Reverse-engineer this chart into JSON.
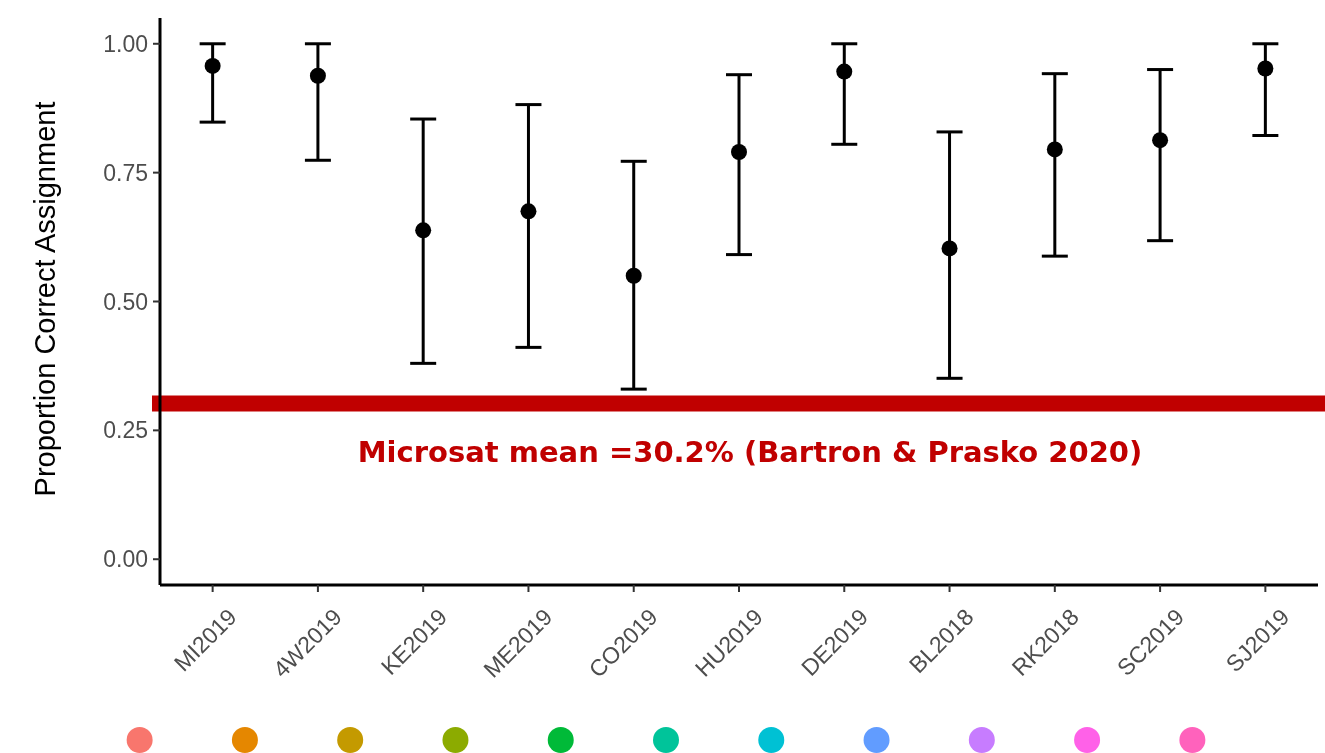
{
  "chart_data": {
    "type": "scatter",
    "ylabel": "Proportion Correct Assignment",
    "categories": [
      "MI2019",
      "4W2019",
      "KE2019",
      "ME2019",
      "CO2019",
      "HU2019",
      "DE2019",
      "BL2018",
      "RK2018",
      "SC2019",
      "SJ2019"
    ],
    "series": [
      {
        "color": "#000000",
        "values": [
          0.957,
          0.938,
          0.638,
          0.675,
          0.55,
          0.79,
          0.946,
          0.603,
          0.795,
          0.813,
          0.952
        ],
        "errors": [
          [
            0.848,
            1.0
          ],
          [
            0.774,
            1.0
          ],
          [
            0.38,
            0.854
          ],
          [
            0.411,
            0.882
          ],
          [
            0.33,
            0.772
          ],
          [
            0.591,
            0.94
          ],
          [
            0.805,
            1.0
          ],
          [
            0.351,
            0.829
          ],
          [
            0.588,
            0.942
          ],
          [
            0.618,
            0.95
          ],
          [
            0.822,
            1.0
          ]
        ]
      }
    ],
    "ylim": [
      -0.05,
      1.05
    ],
    "yticks": [
      {
        "value": 0,
        "label": "0.00"
      },
      {
        "value": 0.25,
        "label": "0.25"
      },
      {
        "value": 0.5,
        "label": "0.50"
      },
      {
        "value": 0.75,
        "label": "0.75"
      },
      {
        "value": 1,
        "label": "1.00"
      }
    ],
    "grid": false,
    "marker": "circle",
    "ref_lines": [
      {
        "axis": "y",
        "value": 0.302,
        "label": "Microsat mean =30.2% (Bartron & Prasko 2020)",
        "color": "#c00000"
      }
    ]
  }
}
